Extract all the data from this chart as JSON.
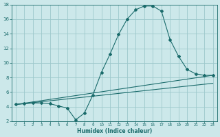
{
  "xlabel": "Humidex (Indice chaleur)",
  "bg_color": "#cce8ea",
  "grid_color": "#9dc8cc",
  "line_color": "#1a6b6b",
  "xlim": [
    -0.5,
    23.5
  ],
  "ylim": [
    2,
    18
  ],
  "xticks": [
    0,
    1,
    2,
    3,
    4,
    5,
    6,
    7,
    8,
    9,
    10,
    11,
    12,
    13,
    14,
    15,
    16,
    17,
    18,
    19,
    20,
    21,
    22,
    23
  ],
  "yticks": [
    2,
    4,
    6,
    8,
    10,
    12,
    14,
    16,
    18
  ],
  "line1_x": [
    0,
    1,
    2,
    3,
    4,
    5,
    6,
    7,
    8,
    9,
    10,
    11,
    12,
    13,
    14,
    15,
    16,
    17,
    18,
    19,
    20,
    21,
    22,
    23
  ],
  "line1_y": [
    4.3,
    4.4,
    4.5,
    4.5,
    4.4,
    4.1,
    3.8,
    2.2,
    3.1,
    5.6,
    8.7,
    11.2,
    13.9,
    16.0,
    17.3,
    17.8,
    17.8,
    17.1,
    13.2,
    10.9,
    9.1,
    8.5,
    8.3,
    8.3
  ],
  "line2_x": [
    0,
    23
  ],
  "line2_y": [
    4.3,
    8.3
  ],
  "line3_x": [
    0,
    23
  ],
  "line3_y": [
    4.3,
    7.2
  ],
  "xlabel_fontsize": 5.5,
  "xlabel_fontweight": "bold",
  "tick_fontsize_x": 4.0,
  "tick_fontsize_y": 5.0
}
